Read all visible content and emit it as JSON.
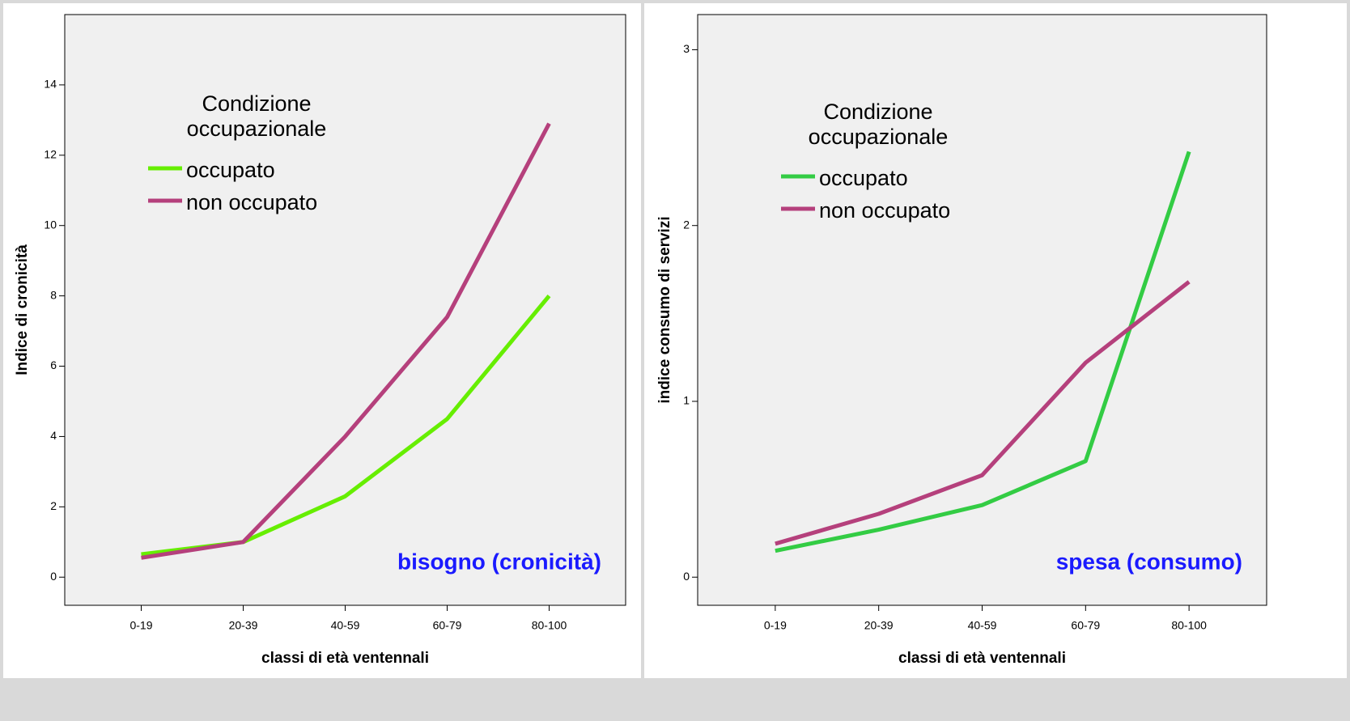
{
  "chart_data": [
    {
      "type": "line",
      "y_label": "Indice di cronicità",
      "x_label": "classi di età ventennali",
      "annotation": "bisogno (cronicità)",
      "legend_title": [
        "Condizione",
        "occupazionale"
      ],
      "legend": "upper left",
      "categories": [
        "0-19",
        "20-39",
        "40-59",
        "60-79",
        "80-100"
      ],
      "series": [
        {
          "name": "occupato",
          "color": "#66ee00",
          "values": [
            0.65,
            1.0,
            2.3,
            4.5,
            8.0
          ]
        },
        {
          "name": "non occupato",
          "color": "#b5407c",
          "values": [
            0.55,
            1.0,
            4.0,
            7.4,
            12.9
          ]
        }
      ],
      "ylim": [
        -0.8,
        16
      ],
      "yticks": [
        0,
        2,
        4,
        6,
        8,
        10,
        12,
        14
      ]
    },
    {
      "type": "line",
      "y_label": "indice consumo di servizi",
      "x_label": "classi di età ventennali",
      "annotation": "spesa (consumo)",
      "legend_title": [
        "Condizione",
        "occupazionale"
      ],
      "legend": "upper left",
      "categories": [
        "0-19",
        "20-39",
        "40-59",
        "60-79",
        "80-100"
      ],
      "series": [
        {
          "name": "occupato",
          "color": "#33cc44",
          "values": [
            0.15,
            0.27,
            0.41,
            0.66,
            2.42
          ]
        },
        {
          "name": "non occupato",
          "color": "#b5407c",
          "values": [
            0.19,
            0.36,
            0.58,
            1.22,
            1.68
          ]
        }
      ],
      "ylim": [
        -0.16,
        3.2
      ],
      "yticks": [
        0,
        1,
        2,
        3
      ]
    }
  ]
}
